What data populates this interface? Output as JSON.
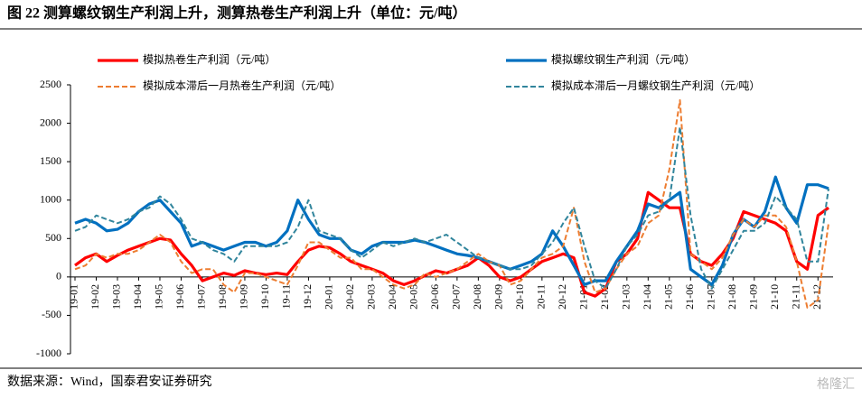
{
  "chart_data": {
    "type": "line",
    "title": "图 22  测算螺纹钢生产利润上升，测算热卷生产利润上升（单位：元/吨）",
    "source": "数据来源：Wind，国泰君安证券研究",
    "watermark": "格隆汇",
    "categories": [
      "19-01",
      null,
      "19-02",
      null,
      "19-03",
      null,
      "19-04",
      null,
      "19-05",
      null,
      "19-06",
      null,
      "19-07",
      null,
      "19-08",
      null,
      "19-09",
      null,
      "19-10",
      null,
      "19-11",
      null,
      "19-12",
      null,
      "20-01",
      null,
      "20-02",
      null,
      "20-03",
      null,
      "20-04",
      null,
      "20-05",
      null,
      "20-06",
      null,
      "20-07",
      null,
      "20-08",
      null,
      "20-09",
      null,
      "20-10",
      null,
      "20-11",
      null,
      "20-12",
      null,
      "21-01",
      null,
      "21-02",
      null,
      "21-03",
      null,
      "21-04",
      null,
      "21-05",
      null,
      "21-06",
      null,
      "21-07",
      null,
      "21-08",
      null,
      "21-09",
      null,
      "21-10",
      null,
      "21-11",
      null,
      "21-12",
      null
    ],
    "series": [
      {
        "name": "模拟热卷生产利润（元/吨）",
        "color": "#ff0000",
        "dash": false,
        "values": [
          150,
          250,
          300,
          200,
          280,
          350,
          400,
          450,
          500,
          480,
          300,
          150,
          -50,
          0,
          50,
          20,
          80,
          50,
          30,
          50,
          30,
          200,
          350,
          400,
          380,
          300,
          200,
          150,
          100,
          50,
          -50,
          -100,
          -50,
          20,
          80,
          50,
          100,
          150,
          250,
          150,
          0,
          -50,
          0,
          100,
          200,
          250,
          300,
          250,
          -200,
          -250,
          -150,
          200,
          300,
          500,
          1100,
          1000,
          900,
          900,
          300,
          200,
          150,
          300,
          500,
          850,
          800,
          750,
          700,
          600,
          200,
          100,
          800,
          900
        ]
      },
      {
        "name": "模拟螺纹钢生产利润（元/吨）",
        "color": "#0070c0",
        "dash": false,
        "values": [
          700,
          750,
          700,
          600,
          620,
          700,
          850,
          950,
          1000,
          850,
          700,
          400,
          450,
          400,
          350,
          400,
          450,
          450,
          400,
          450,
          600,
          1000,
          750,
          550,
          500,
          500,
          350,
          300,
          400,
          450,
          450,
          450,
          480,
          450,
          400,
          350,
          300,
          280,
          250,
          200,
          150,
          100,
          150,
          200,
          300,
          600,
          400,
          150,
          -100,
          -50,
          -50,
          200,
          400,
          600,
          950,
          900,
          1000,
          1100,
          100,
          0,
          -100,
          150,
          550,
          750,
          650,
          850,
          1300,
          900,
          700,
          1200,
          1200,
          1150
        ]
      },
      {
        "name": "模拟成本滞后一月热卷生产利润（元/吨）",
        "color": "#ed7d31",
        "dash": true,
        "values": [
          100,
          150,
          300,
          250,
          300,
          300,
          350,
          450,
          550,
          450,
          200,
          50,
          100,
          100,
          -100,
          -200,
          50,
          50,
          0,
          -50,
          -100,
          150,
          450,
          450,
          350,
          250,
          250,
          100,
          100,
          0,
          -100,
          -150,
          -100,
          50,
          0,
          50,
          100,
          200,
          300,
          200,
          150,
          -100,
          -50,
          100,
          250,
          300,
          400,
          900,
          200,
          -200,
          -150,
          100,
          300,
          400,
          700,
          800,
          1400,
          2300,
          300,
          200,
          100,
          250,
          550,
          750,
          650,
          800,
          800,
          650,
          200,
          -400,
          -300,
          700
        ]
      },
      {
        "name": "模拟成本滞后一月螺纹钢生产利润（元/吨）",
        "color": "#31859c",
        "dash": true,
        "values": [
          600,
          650,
          800,
          750,
          700,
          750,
          850,
          900,
          1050,
          950,
          750,
          500,
          450,
          350,
          300,
          200,
          400,
          400,
          400,
          400,
          450,
          650,
          1000,
          600,
          550,
          500,
          350,
          250,
          350,
          450,
          400,
          450,
          500,
          450,
          500,
          550,
          450,
          350,
          250,
          200,
          150,
          100,
          100,
          150,
          300,
          450,
          700,
          900,
          400,
          -50,
          -150,
          100,
          400,
          550,
          800,
          850,
          1000,
          1950,
          800,
          100,
          -150,
          100,
          350,
          600,
          600,
          700,
          1050,
          900,
          750,
          200,
          200,
          1150
        ]
      }
    ],
    "ylim": [
      -1000,
      2500
    ],
    "yticks": [
      -1000,
      -500,
      0,
      500,
      1000,
      1500,
      2000,
      2500
    ]
  }
}
